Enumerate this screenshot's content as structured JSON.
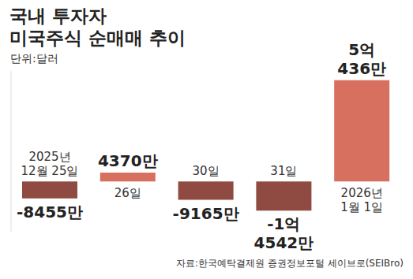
{
  "chart_data": {
    "type": "bar",
    "title": "국내 투자자\n미국주식 순매매 추이",
    "subtitle": "단위:달러",
    "source": "자료:한국예탁결제원 증권정보포털 세이브로(SEIBro)",
    "categories": [
      "2025년 12월 25일",
      "26일",
      "30일",
      "31일",
      "2026년 1월 1일"
    ],
    "values": [
      -84550000,
      43700000,
      -91650000,
      -145420000,
      504360000
    ],
    "value_labels": [
      "-8455만",
      "4370만",
      "-9165만",
      "-1억 4542만",
      "5억 436만"
    ],
    "colors": [
      "#8f4b41",
      "#d8705f",
      "#8f4b41",
      "#8f4b41",
      "#d8705f"
    ],
    "ylim": [
      -250000000,
      550000000
    ],
    "yticks": [
      0
    ],
    "grid": false,
    "data_labels": true,
    "tick_labels": false
  }
}
